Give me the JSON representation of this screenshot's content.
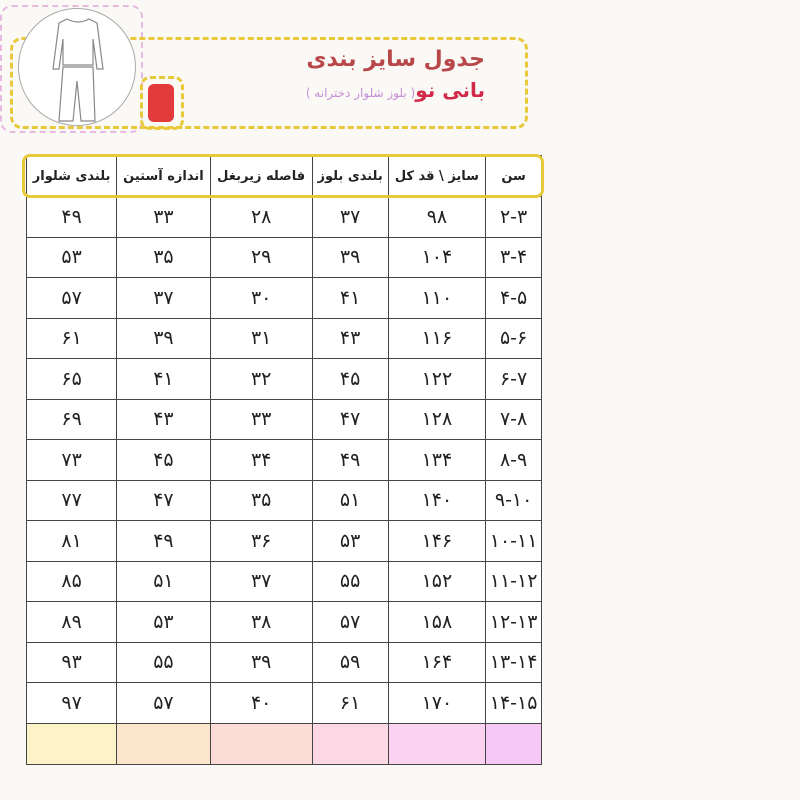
{
  "header": {
    "title": "جدول سایز  بندی",
    "brand": "بانی نو",
    "subtitle": "( بلوز شلوار دخترانه )"
  },
  "colors": {
    "accent_border": "#e8c93a",
    "title": "#b8474a",
    "brand": "#d1294a",
    "subtitle": "#c58fd6",
    "logo": "#e33b3b"
  },
  "table": {
    "columns": [
      "سن",
      "سایز \\ قد کل",
      "بلندی بلوز",
      "فاصله زیربغل",
      "اندازه آستین",
      "بلندی شلوار"
    ],
    "rows": [
      [
        "۲-۳",
        "۹۸",
        "۳۷",
        "۲۸",
        "۳۳",
        "۴۹"
      ],
      [
        "۳-۴",
        "۱۰۴",
        "۳۹",
        "۲۹",
        "۳۵",
        "۵۳"
      ],
      [
        "۴-۵",
        "۱۱۰",
        "۴۱",
        "۳۰",
        "۳۷",
        "۵۷"
      ],
      [
        "۵-۶",
        "۱۱۶",
        "۴۳",
        "۳۱",
        "۳۹",
        "۶۱"
      ],
      [
        "۶-۷",
        "۱۲۲",
        "۴۵",
        "۳۲",
        "۴۱",
        "۶۵"
      ],
      [
        "۷-۸",
        "۱۲۸",
        "۴۷",
        "۳۳",
        "۴۳",
        "۶۹"
      ],
      [
        "۸-۹",
        "۱۳۴",
        "۴۹",
        "۳۴",
        "۴۵",
        "۷۳"
      ],
      [
        "۹-۱۰",
        "۱۴۰",
        "۵۱",
        "۳۵",
        "۴۷",
        "۷۷"
      ],
      [
        "۱۰-۱۱",
        "۱۴۶",
        "۵۳",
        "۳۶",
        "۴۹",
        "۸۱"
      ],
      [
        "۱۱-۱۲",
        "۱۵۲",
        "۵۵",
        "۳۷",
        "۵۱",
        "۸۵"
      ],
      [
        "۱۲-۱۳",
        "۱۵۸",
        "۵۷",
        "۳۸",
        "۵۳",
        "۸۹"
      ],
      [
        "۱۳-۱۴",
        "۱۶۴",
        "۵۹",
        "۳۹",
        "۵۵",
        "۹۳"
      ],
      [
        "۱۴-۱۵",
        "۱۷۰",
        "۶۱",
        "۴۰",
        "۵۷",
        "۹۷"
      ]
    ],
    "footer_colors": [
      "#f6c8f6",
      "#fbd2f0",
      "#fcd8e4",
      "#fcdcd6",
      "#fbe6cc",
      "#fcf3c9"
    ]
  }
}
